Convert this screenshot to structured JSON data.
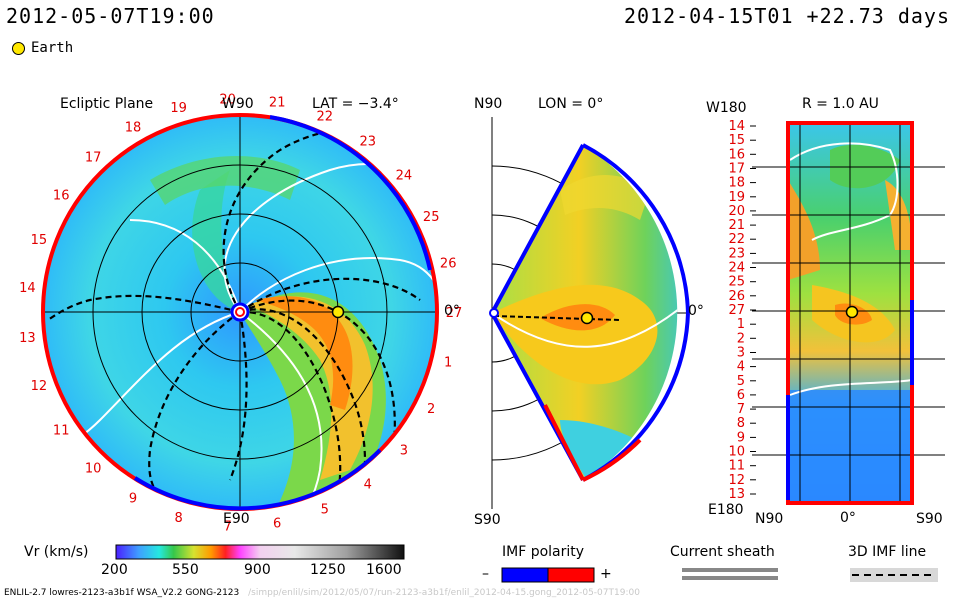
{
  "header": {
    "left_time": "2012-05-07T19:00",
    "right_time": "2012-04-15T01 +22.73 days"
  },
  "legend": {
    "earth_label": "Earth"
  },
  "colors": {
    "earth": "#ffe800",
    "polarity_negative": "#0000ff",
    "polarity_positive": "#ff0000"
  },
  "panels": {
    "ecliptic": {
      "title": "Ecliptic Plane",
      "top_label": "W90",
      "lat_label": "LAT = −3.4°",
      "bottom_label": "E90",
      "right_label": "0°"
    },
    "meridional": {
      "top_label": "N90",
      "lon_label": "LON = 0°",
      "bottom_label": "S90",
      "right_label": "0°"
    },
    "map": {
      "title": "R = 1.0 AU",
      "top_label": "W180",
      "bottom_label": "E180",
      "x_left": "N90",
      "x_mid": "0°",
      "x_right": "S90"
    }
  },
  "colorbar": {
    "label": "Vr (km/s)",
    "ticks": [
      "200",
      "550",
      "900",
      "1250",
      "1600"
    ]
  },
  "imf": {
    "label": "IMF polarity",
    "minus": "–",
    "plus": "+"
  },
  "sheath": {
    "label": "Current sheath"
  },
  "imf3d": {
    "label": "3D IMF line"
  },
  "footer": {
    "model": "ENLIL-2.7 lowres-2123-a3b1f WSA_V2.2 GONG-2123",
    "path": "/simpp/enlil/sim/2012/05/07/run-2123-a3b1f/enlil_2012-04-15.gong_2012-05-07T19:00"
  },
  "chart_data": [
    {
      "type": "heatmap",
      "name": "ecliptic-plane",
      "title": "Ecliptic Plane",
      "quantity": "Vr (km/s)",
      "range": [
        200,
        1600
      ],
      "radial_extent_au": 2,
      "ring_labels": [
        "27",
        "1",
        "2",
        "3",
        "4",
        "5",
        "6",
        "7",
        "8",
        "9",
        "10",
        "11",
        "12",
        "13",
        "14",
        "15",
        "16",
        "17",
        "18",
        "19",
        "20",
        "21",
        "22",
        "23",
        "24",
        "25",
        "26"
      ]
    },
    {
      "type": "heatmap",
      "name": "meridional-plane",
      "title": "LON = 0°",
      "quantity": "Vr (km/s)",
      "range": [
        200,
        1600
      ],
      "latitude_extent_deg": [
        -60,
        60
      ]
    },
    {
      "type": "heatmap",
      "name": "synoptic-map-1au",
      "title": "R = 1.0 AU",
      "quantity": "Vr (km/s)",
      "range": [
        200,
        1600
      ],
      "y_tick_labels": [
        "14",
        "15",
        "16",
        "17",
        "18",
        "19",
        "20",
        "21",
        "22",
        "23",
        "24",
        "25",
        "26",
        "27",
        "1",
        "2",
        "3",
        "4",
        "5",
        "6",
        "7",
        "8",
        "9",
        "10",
        "11",
        "12",
        "13"
      ],
      "x_tick_labels": [
        "N90",
        "0°",
        "S90"
      ]
    }
  ]
}
